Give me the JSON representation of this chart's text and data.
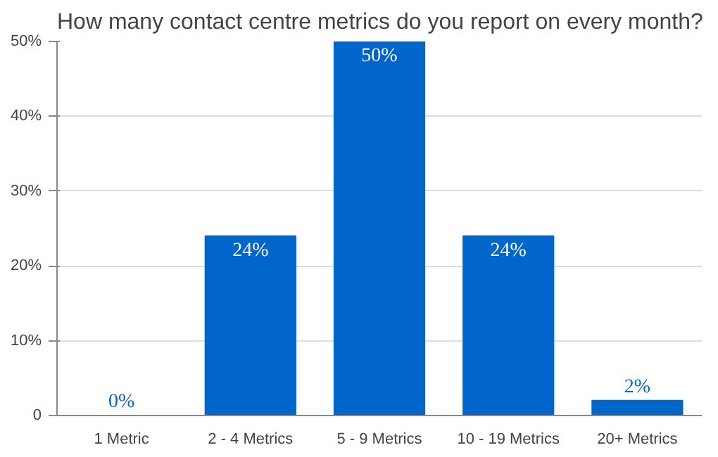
{
  "chart_data": {
    "type": "bar",
    "title": "How many contact centre metrics do you report on every month?",
    "categories": [
      "1 Metric",
      "2 - 4 Metrics",
      "5 - 9 Metrics",
      "10 - 19 Metrics",
      "20+ Metrics"
    ],
    "values": [
      0,
      24,
      50,
      24,
      2
    ],
    "color": "#0066cc",
    "value_labels": [
      "0%",
      "24%",
      "50%",
      "24%",
      "2%"
    ],
    "ylim": [
      0,
      50
    ],
    "yticks": [
      0,
      {
        "value": 10,
        "label": "10%"
      },
      {
        "value": 20,
        "label": "20%"
      },
      {
        "value": 30,
        "label": "30%"
      },
      {
        "value": 40,
        "label": "40%"
      },
      {
        "value": 50,
        "label": "50%"
      }
    ],
    "grid": "y"
  }
}
